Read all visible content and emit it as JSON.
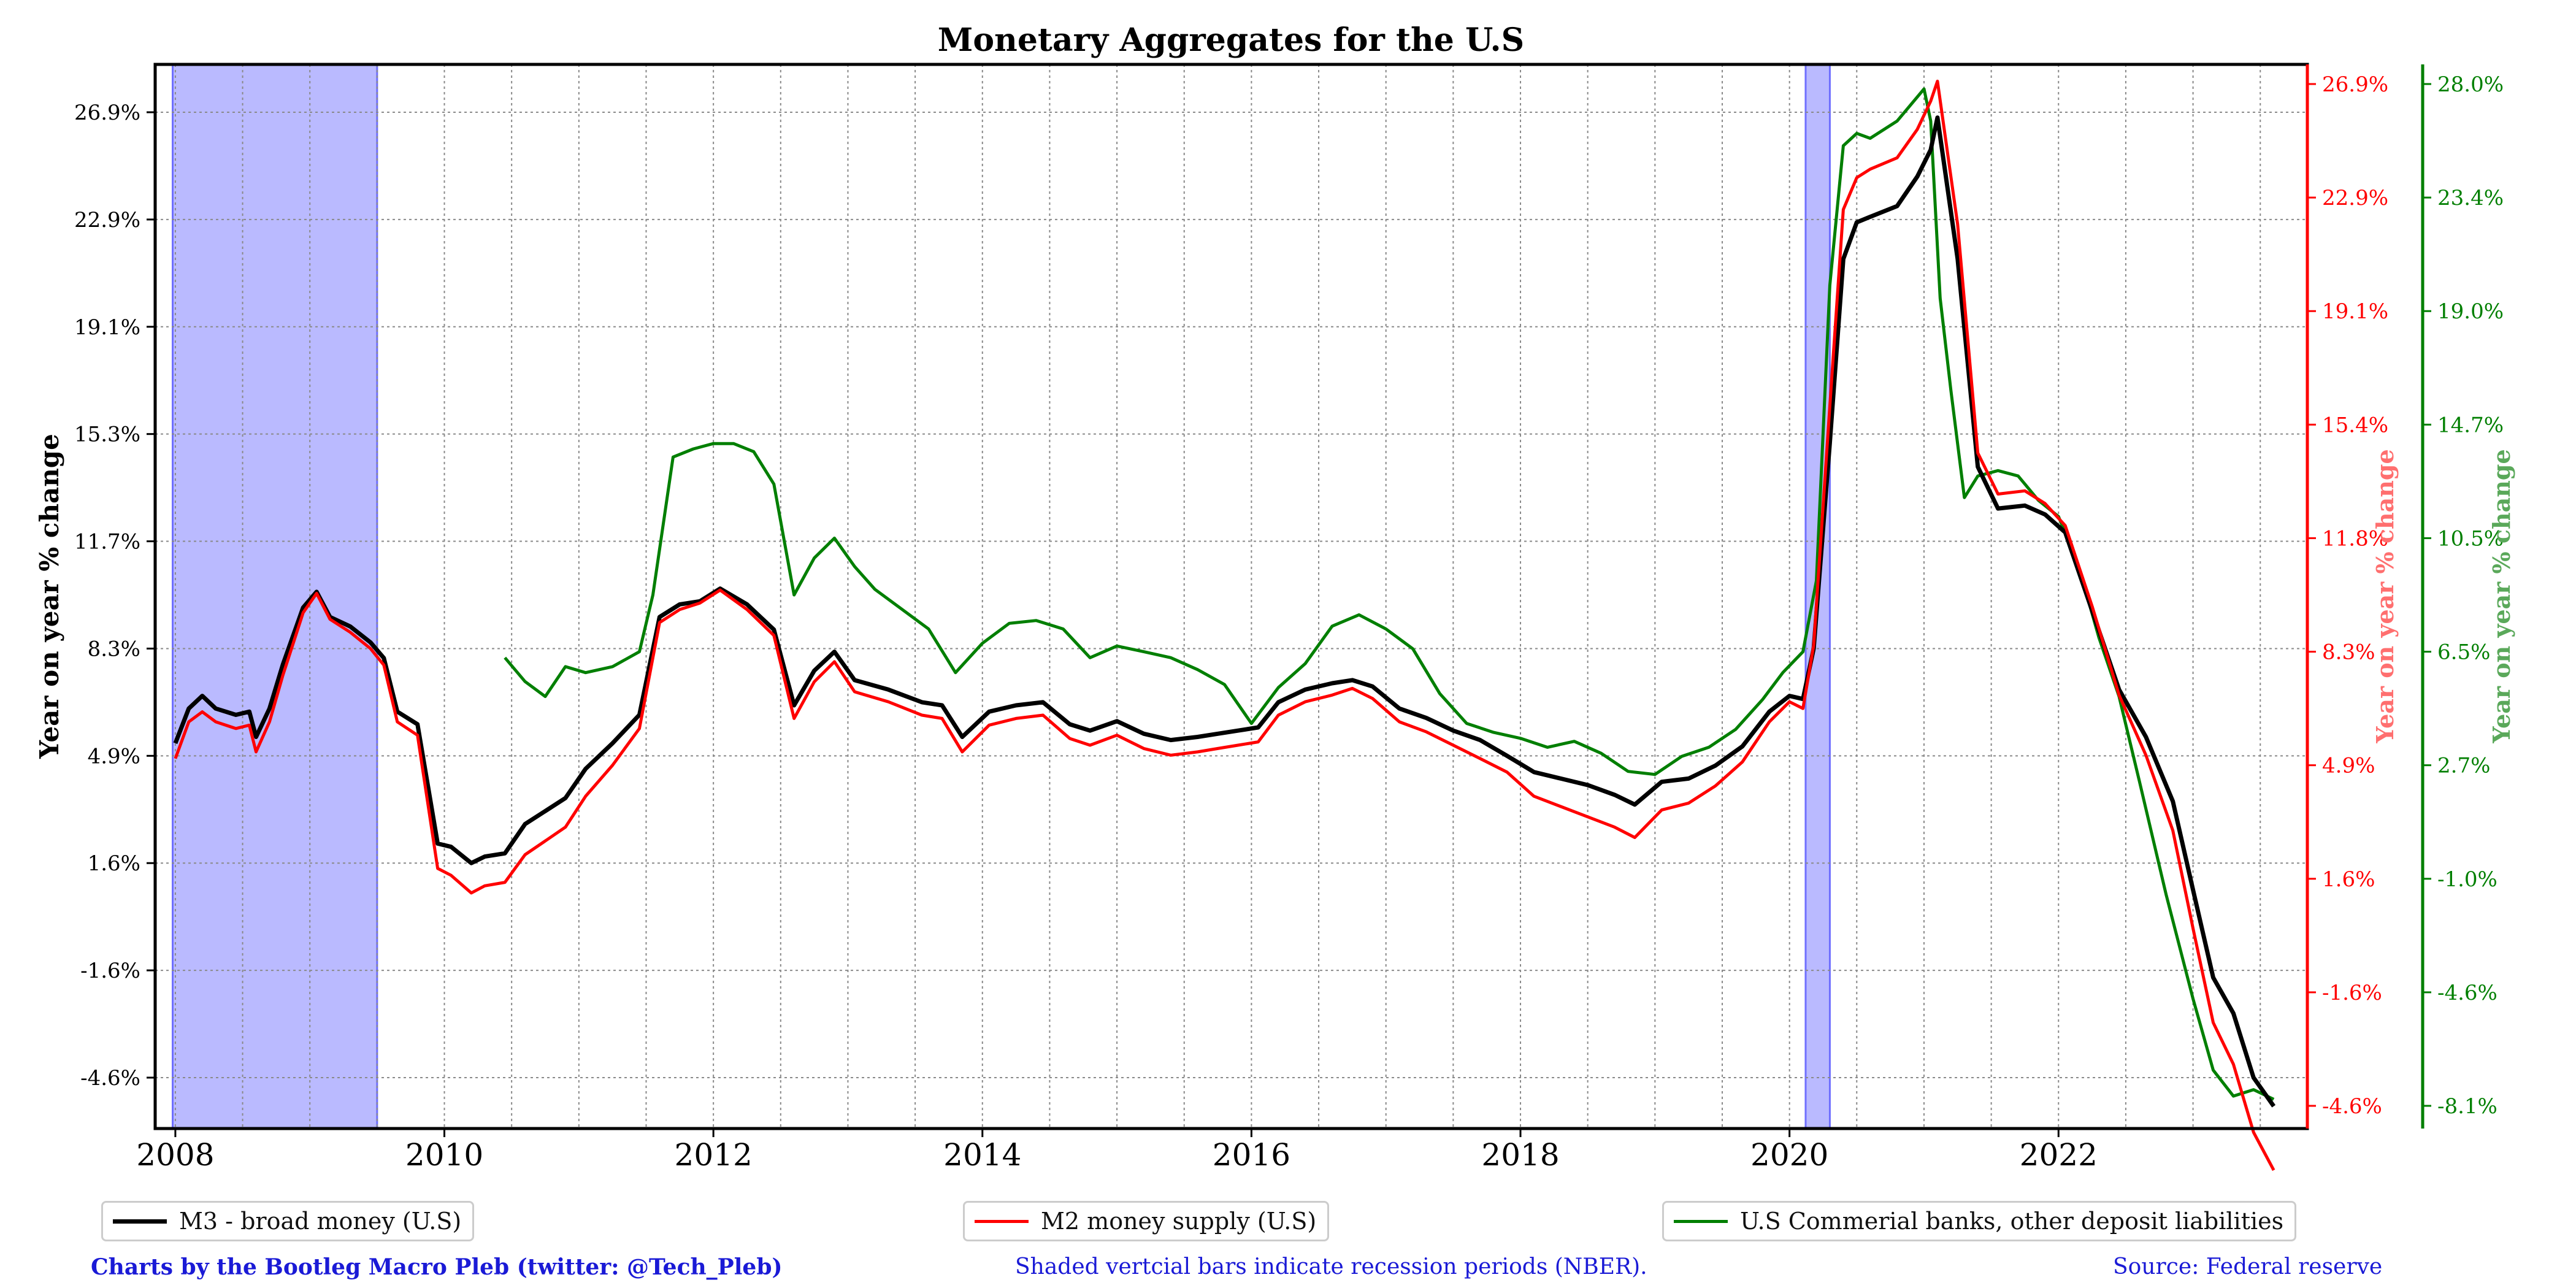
{
  "chart_data": {
    "type": "line",
    "title": "Monetary Aggregates for the U.S",
    "ylabel_left": "Year on year % change",
    "ylabel_right_red": "Year on year % change",
    "ylabel_right_green": "Year on year % change",
    "x_ticks": [
      "2008",
      "2010",
      "2012",
      "2014",
      "2016",
      "2018",
      "2020",
      "2022"
    ],
    "xlim": [
      2007.85,
      2023.85
    ],
    "y_left_ticks": [
      "26.9%",
      "22.9%",
      "19.1%",
      "15.3%",
      "11.7%",
      "8.3%",
      "4.9%",
      "1.6%",
      "-1.6%",
      "-4.6%"
    ],
    "y_left_tick_values": [
      26.9,
      22.9,
      19.1,
      15.3,
      11.7,
      8.3,
      4.9,
      1.6,
      -1.6,
      -4.6
    ],
    "y_red_ticks": [
      "26.9%",
      "22.9%",
      "19.1%",
      "15.4%",
      "11.8%",
      "8.3%",
      "4.9%",
      "1.6%",
      "-1.6%",
      "-4.6%"
    ],
    "y_red_tick_values": [
      26.9,
      22.9,
      19.1,
      15.4,
      11.8,
      8.3,
      4.9,
      1.6,
      -1.6,
      -4.6
    ],
    "y_green_ticks": [
      "28.0%",
      "23.4%",
      "19.0%",
      "14.7%",
      "10.5%",
      "6.5%",
      "2.7%",
      "-1.0%",
      "-4.6%",
      "-8.1%"
    ],
    "y_green_tick_values": [
      28.0,
      23.4,
      19.0,
      14.7,
      10.5,
      6.5,
      2.7,
      -1.0,
      -4.6,
      -8.1
    ],
    "grid": true,
    "recessions": [
      [
        2007.98,
        2009.5
      ],
      [
        2020.12,
        2020.3
      ]
    ],
    "series": [
      {
        "name": "M3 - broad money (U.S)",
        "color": "#000000",
        "axis": "left",
        "x": [
          2008.0,
          2008.1,
          2008.2,
          2008.3,
          2008.45,
          2008.55,
          2008.6,
          2008.7,
          2008.8,
          2008.95,
          2009.05,
          2009.15,
          2009.3,
          2009.45,
          2009.55,
          2009.65,
          2009.8,
          2009.95,
          2010.05,
          2010.2,
          2010.3,
          2010.45,
          2010.6,
          2010.75,
          2010.9,
          2011.05,
          2011.25,
          2011.45,
          2011.6,
          2011.75,
          2011.9,
          2012.05,
          2012.25,
          2012.45,
          2012.6,
          2012.75,
          2012.9,
          2013.05,
          2013.3,
          2013.55,
          2013.7,
          2013.85,
          2014.05,
          2014.25,
          2014.45,
          2014.65,
          2014.8,
          2015.0,
          2015.2,
          2015.4,
          2015.6,
          2015.75,
          2015.9,
          2016.05,
          2016.2,
          2016.4,
          2016.6,
          2016.75,
          2016.9,
          2017.1,
          2017.3,
          2017.5,
          2017.7,
          2017.9,
          2018.1,
          2018.3,
          2018.5,
          2018.7,
          2018.85,
          2019.05,
          2019.25,
          2019.45,
          2019.65,
          2019.85,
          2020.0,
          2020.1,
          2020.18,
          2020.3,
          2020.4,
          2020.5,
          2020.6,
          2020.8,
          2020.95,
          2021.05,
          2021.1,
          2021.25,
          2021.4,
          2021.55,
          2021.75,
          2021.9,
          2022.05,
          2022.25,
          2022.45,
          2022.65,
          2022.85,
          2023.0,
          2023.15,
          2023.3,
          2023.45,
          2023.6
        ],
        "values": [
          5.3,
          6.4,
          6.8,
          6.4,
          6.2,
          6.3,
          5.5,
          6.4,
          7.8,
          9.6,
          10.1,
          9.3,
          9.0,
          8.5,
          8.0,
          6.3,
          5.9,
          2.2,
          2.1,
          1.6,
          1.8,
          1.9,
          2.8,
          3.2,
          3.6,
          4.5,
          5.3,
          6.2,
          9.3,
          9.7,
          9.8,
          10.2,
          9.7,
          8.9,
          6.5,
          7.6,
          8.2,
          7.3,
          7.0,
          6.6,
          6.5,
          5.5,
          6.3,
          6.5,
          6.6,
          5.9,
          5.7,
          6.0,
          5.6,
          5.4,
          5.5,
          5.6,
          5.7,
          5.8,
          6.6,
          7.0,
          7.2,
          7.3,
          7.1,
          6.4,
          6.1,
          5.7,
          5.4,
          4.9,
          4.4,
          4.2,
          4.0,
          3.7,
          3.4,
          4.1,
          4.2,
          4.6,
          5.2,
          6.3,
          6.8,
          6.7,
          8.3,
          15.0,
          21.5,
          22.8,
          23.0,
          23.4,
          24.5,
          25.5,
          26.7,
          21.5,
          14.2,
          12.8,
          12.9,
          12.6,
          12.0,
          9.5,
          7.0,
          5.5,
          3.5,
          0.8,
          -1.8,
          -2.8,
          -4.6,
          -5.4
        ]
      },
      {
        "name": "M2 money supply (U.S)",
        "color": "#ff0000",
        "axis": "red",
        "x": [
          2008.0,
          2008.1,
          2008.2,
          2008.3,
          2008.45,
          2008.55,
          2008.6,
          2008.7,
          2008.8,
          2008.95,
          2009.05,
          2009.15,
          2009.3,
          2009.45,
          2009.55,
          2009.65,
          2009.8,
          2009.95,
          2010.05,
          2010.2,
          2010.3,
          2010.45,
          2010.6,
          2010.75,
          2010.9,
          2011.05,
          2011.25,
          2011.45,
          2011.6,
          2011.75,
          2011.9,
          2012.05,
          2012.25,
          2012.45,
          2012.6,
          2012.75,
          2012.9,
          2013.05,
          2013.3,
          2013.55,
          2013.7,
          2013.85,
          2014.05,
          2014.25,
          2014.45,
          2014.65,
          2014.8,
          2015.0,
          2015.2,
          2015.4,
          2015.6,
          2015.75,
          2015.9,
          2016.05,
          2016.2,
          2016.4,
          2016.6,
          2016.75,
          2016.9,
          2017.1,
          2017.3,
          2017.5,
          2017.7,
          2017.9,
          2018.1,
          2018.3,
          2018.5,
          2018.7,
          2018.85,
          2019.05,
          2019.25,
          2019.45,
          2019.65,
          2019.85,
          2020.0,
          2020.1,
          2020.18,
          2020.3,
          2020.4,
          2020.5,
          2020.6,
          2020.8,
          2020.95,
          2021.05,
          2021.1,
          2021.25,
          2021.4,
          2021.55,
          2021.75,
          2021.9,
          2022.05,
          2022.25,
          2022.45,
          2022.65,
          2022.85,
          2023.0,
          2023.15,
          2023.3,
          2023.45,
          2023.6
        ],
        "values": [
          5.1,
          6.2,
          6.5,
          6.2,
          6.0,
          6.1,
          5.3,
          6.2,
          7.6,
          9.5,
          10.1,
          9.3,
          8.9,
          8.4,
          7.9,
          6.2,
          5.8,
          1.9,
          1.7,
          1.2,
          1.4,
          1.5,
          2.3,
          2.7,
          3.1,
          4.0,
          4.9,
          6.0,
          9.2,
          9.6,
          9.8,
          10.2,
          9.6,
          8.8,
          6.3,
          7.4,
          8.0,
          7.1,
          6.8,
          6.4,
          6.3,
          5.3,
          6.1,
          6.3,
          6.4,
          5.7,
          5.5,
          5.8,
          5.4,
          5.2,
          5.3,
          5.4,
          5.5,
          5.6,
          6.4,
          6.8,
          7.0,
          7.2,
          6.9,
          6.2,
          5.9,
          5.5,
          5.1,
          4.7,
          4.0,
          3.7,
          3.4,
          3.1,
          2.8,
          3.6,
          3.8,
          4.3,
          5.0,
          6.2,
          6.8,
          6.6,
          8.5,
          16.0,
          22.5,
          23.6,
          23.9,
          24.3,
          25.3,
          26.3,
          27.0,
          22.0,
          14.5,
          13.2,
          13.3,
          12.9,
          12.2,
          9.7,
          7.0,
          5.2,
          3.0,
          0.2,
          -2.4,
          -3.5,
          -5.3,
          -6.3
        ]
      },
      {
        "name": "U.S Commerial banks, other deposit liabilities",
        "color": "#007f00",
        "axis": "green",
        "x": [
          2010.45,
          2010.6,
          2010.75,
          2010.9,
          2011.05,
          2011.25,
          2011.45,
          2011.55,
          2011.7,
          2011.85,
          2012.0,
          2012.15,
          2012.3,
          2012.45,
          2012.6,
          2012.75,
          2012.9,
          2013.05,
          2013.2,
          2013.4,
          2013.6,
          2013.8,
          2014.0,
          2014.2,
          2014.4,
          2014.6,
          2014.8,
          2015.0,
          2015.2,
          2015.4,
          2015.6,
          2015.8,
          2016.0,
          2016.2,
          2016.4,
          2016.6,
          2016.8,
          2017.0,
          2017.2,
          2017.4,
          2017.6,
          2017.8,
          2018.0,
          2018.2,
          2018.4,
          2018.6,
          2018.8,
          2019.0,
          2019.2,
          2019.4,
          2019.6,
          2019.8,
          2019.95,
          2020.1,
          2020.2,
          2020.3,
          2020.4,
          2020.5,
          2020.6,
          2020.8,
          2021.0,
          2021.05,
          2021.12,
          2021.2,
          2021.3,
          2021.4,
          2021.55,
          2021.7,
          2021.85,
          2022.0,
          2022.15,
          2022.3,
          2022.45,
          2022.6,
          2022.8,
          2023.0,
          2023.15,
          2023.3,
          2023.45,
          2023.6
        ],
        "values": [
          6.3,
          5.5,
          5.0,
          6.0,
          5.8,
          6.0,
          6.5,
          8.5,
          13.5,
          13.8,
          14.0,
          14.0,
          13.7,
          12.5,
          8.5,
          9.8,
          10.5,
          9.5,
          8.7,
          8.0,
          7.3,
          5.8,
          6.8,
          7.5,
          7.6,
          7.3,
          6.3,
          6.7,
          6.5,
          6.3,
          5.9,
          5.4,
          4.1,
          5.3,
          6.1,
          7.4,
          7.8,
          7.3,
          6.6,
          5.1,
          4.1,
          3.8,
          3.6,
          3.3,
          3.5,
          3.1,
          2.5,
          2.4,
          3.0,
          3.3,
          3.9,
          4.9,
          5.8,
          6.5,
          9.0,
          20.0,
          25.5,
          26.0,
          25.8,
          26.5,
          27.8,
          26.5,
          19.5,
          16.0,
          12.0,
          12.8,
          13.0,
          12.8,
          11.9,
          11.3,
          9.5,
          7.0,
          5.0,
          2.2,
          -1.5,
          -4.8,
          -7.0,
          -7.8,
          -7.6,
          -7.9
        ]
      }
    ]
  },
  "footer": {
    "credit": "Charts by the Bootleg Macro Pleb (twitter: @Tech_Pleb)",
    "note": "Shaded vertcial bars indicate recession periods (NBER).",
    "source": "Source: Federal reserve"
  }
}
